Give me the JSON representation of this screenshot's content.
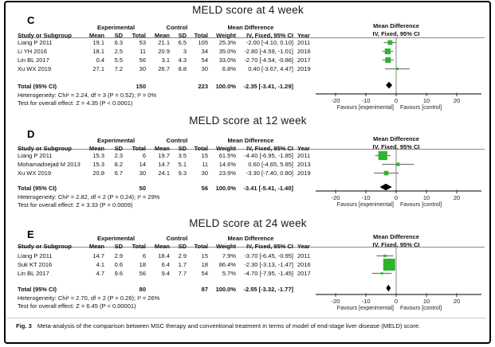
{
  "figure": {
    "caption_label": "Fig. 3",
    "caption_text": "Meta-analysis of the comparison between MSC therapy and conventional treatment in terms of model of end-stage liver disease (MELD) score."
  },
  "table_headers": {
    "study": "Study or Subgroup",
    "mean": "Mean",
    "sd": "SD",
    "total": "Total",
    "weight": "Weight",
    "ci": "IV, Fixed, 95% CI",
    "year": "Year",
    "experimental": "Experimental",
    "control": "Control",
    "mean_difference": "Mean Difference"
  },
  "axis": {
    "ticks": [
      -20,
      -10,
      0,
      10,
      20
    ],
    "favours_left": "Favours [experimental]",
    "favours_right": "Favours [control]"
  },
  "colors": {
    "square_green": "#2cb52c",
    "diamond_black": "#000000",
    "ci_line_gray": "#777777",
    "axis_dark": "#333333"
  },
  "chart_data": [
    {
      "type": "forest",
      "panel_label": "C",
      "title": "MELD score at 4 week",
      "x_range": [
        -20,
        20
      ],
      "studies": [
        {
          "study": "Liang P 2011",
          "exp_mean": "19.1",
          "exp_sd": "6.3",
          "exp_total": "53",
          "ctl_mean": "21.1",
          "ctl_sd": "6.5",
          "ctl_total": "105",
          "weight": "25.3%",
          "weight_pct": 25.3,
          "ci_text": "-2.00 [-4.10, 0.10]",
          "md": -2.0,
          "lo": -4.1,
          "hi": 0.1,
          "year": "2011"
        },
        {
          "study": "Li YH 2016",
          "exp_mean": "18.1",
          "exp_sd": "2.5",
          "exp_total": "11",
          "ctl_mean": "20.9",
          "ctl_sd": "3",
          "ctl_total": "34",
          "weight": "35.0%",
          "weight_pct": 35.0,
          "ci_text": "-2.80 [-4.59, -1.01]",
          "md": -2.8,
          "lo": -4.59,
          "hi": -1.01,
          "year": "2016"
        },
        {
          "study": "Lin BL 2017",
          "exp_mean": "0.4",
          "exp_sd": "5.5",
          "exp_total": "56",
          "ctl_mean": "3.1",
          "ctl_sd": "4.3",
          "ctl_total": "54",
          "weight": "33.0%",
          "weight_pct": 33.0,
          "ci_text": "-2.70 [-4.54, -0.86]",
          "md": -2.7,
          "lo": -4.54,
          "hi": -0.86,
          "year": "2017"
        },
        {
          "study": "Xu WX 2019",
          "exp_mean": "27.1",
          "exp_sd": "7.2",
          "exp_total": "30",
          "ctl_mean": "26.7",
          "ctl_sd": "8.8",
          "ctl_total": "30",
          "weight": "6.8%",
          "weight_pct": 6.8,
          "ci_text": "0.40 [-3.67, 4.47]",
          "md": 0.4,
          "lo": -3.67,
          "hi": 4.47,
          "year": "2019"
        }
      ],
      "total": {
        "label": "Total (95% CI)",
        "exp_total": "150",
        "ctl_total": "223",
        "weight": "100.0%",
        "ci_text": "-2.35 [-3.41, -1.29]",
        "md": -2.35,
        "lo": -3.41,
        "hi": -1.29
      },
      "heterogeneity": "Heterogeneity: Chi² = 2.24, df = 3 (P = 0.52); I² = 0%",
      "overall_effect": "Test for overall effect: Z = 4.35 (P < 0.0001)"
    },
    {
      "type": "forest",
      "panel_label": "D",
      "title": "MELD score at 12 week",
      "x_range": [
        -20,
        20
      ],
      "studies": [
        {
          "study": "Liang P 2011",
          "exp_mean": "15.3",
          "exp_sd": "2.3",
          "exp_total": "6",
          "ctl_mean": "19.7",
          "ctl_sd": "3.5",
          "ctl_total": "15",
          "weight": "61.5%",
          "weight_pct": 61.5,
          "ci_text": "-4.40 [-6.95, -1.85]",
          "md": -4.4,
          "lo": -6.95,
          "hi": -1.85,
          "year": "2011"
        },
        {
          "study": "Mohamadnejad M 2013",
          "exp_mean": "15.3",
          "exp_sd": "8.2",
          "exp_total": "14",
          "ctl_mean": "14.7",
          "ctl_sd": "5.1",
          "ctl_total": "11",
          "weight": "14.6%",
          "weight_pct": 14.6,
          "ci_text": "0.60 [-4.65, 5.85]",
          "md": 0.6,
          "lo": -4.65,
          "hi": 5.85,
          "year": "2013"
        },
        {
          "study": "Xu WX 2019",
          "exp_mean": "20.8",
          "exp_sd": "6.7",
          "exp_total": "30",
          "ctl_mean": "24.1",
          "ctl_sd": "9.3",
          "ctl_total": "30",
          "weight": "23.9%",
          "weight_pct": 23.9,
          "ci_text": "-3.30 [-7.40, 0.80]",
          "md": -3.3,
          "lo": -7.4,
          "hi": 0.8,
          "year": "2019"
        }
      ],
      "total": {
        "label": "Total (95% CI)",
        "exp_total": "50",
        "ctl_total": "56",
        "weight": "100.0%",
        "ci_text": "-3.41 [-5.41, -1.40]",
        "md": -3.41,
        "lo": -5.41,
        "hi": -1.4
      },
      "heterogeneity": "Heterogeneity: Chi² = 2.82, df = 2 (P = 0.24); I² = 29%",
      "overall_effect": "Test for overall effect: Z = 3.33 (P = 0.0009)"
    },
    {
      "type": "forest",
      "panel_label": "E",
      "title": "MELD score at 24 week",
      "x_range": [
        -20,
        20
      ],
      "studies": [
        {
          "study": "Liang P 2011",
          "exp_mean": "14.7",
          "exp_sd": "2.9",
          "exp_total": "6",
          "ctl_mean": "18.4",
          "ctl_sd": "2.9",
          "ctl_total": "15",
          "weight": "7.9%",
          "weight_pct": 7.9,
          "ci_text": "-3.70 [-6.45, -0.95]",
          "md": -3.7,
          "lo": -6.45,
          "hi": -0.95,
          "year": "2011"
        },
        {
          "study": "Suk KT 2016",
          "exp_mean": "4.1",
          "exp_sd": "0.6",
          "exp_total": "18",
          "ctl_mean": "6.4",
          "ctl_sd": "1.7",
          "ctl_total": "18",
          "weight": "86.4%",
          "weight_pct": 86.4,
          "ci_text": "-2.30 [-3.13, -1.47]",
          "md": -2.3,
          "lo": -3.13,
          "hi": -1.47,
          "year": "2016"
        },
        {
          "study": "Lin BL 2017",
          "exp_mean": "4.7",
          "exp_sd": "9.6",
          "exp_total": "56",
          "ctl_mean": "9.4",
          "ctl_sd": "7.7",
          "ctl_total": "54",
          "weight": "5.7%",
          "weight_pct": 5.7,
          "ci_text": "-4.70 [-7.95, -1.45]",
          "md": -4.7,
          "lo": -7.95,
          "hi": -1.45,
          "year": "2017"
        }
      ],
      "total": {
        "label": "Total (95% CI)",
        "exp_total": "80",
        "ctl_total": "87",
        "weight": "100.0%",
        "ci_text": "-2.55 [-3.32, -1.77]",
        "md": -2.55,
        "lo": -3.32,
        "hi": -1.77
      },
      "heterogeneity": "Heterogeneity: Chi² = 2.70, df = 2 (P = 0.26); I² = 26%",
      "overall_effect": "Test for overall effect: Z = 6.45 (P < 0.00001)"
    }
  ]
}
